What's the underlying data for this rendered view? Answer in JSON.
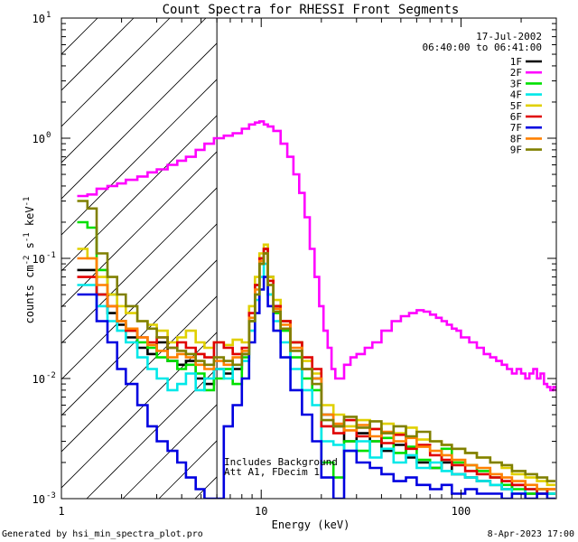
{
  "chart_data": {
    "type": "line",
    "title": "Count Spectra for RHESSI Front Segments",
    "xlabel": "Energy (keV)",
    "ylabel": {
      "base": "counts cm",
      "exp1": "-2",
      "mid": " s",
      "exp2": "-1",
      "tail": " keV",
      "exp3": "-1"
    },
    "xscale": "log",
    "yscale": "log",
    "xlim": [
      1,
      300
    ],
    "ylim": [
      0.001,
      10
    ],
    "xticks": [
      {
        "value": 1,
        "label": "1"
      },
      {
        "value": 10,
        "label": "10"
      },
      {
        "value": 100,
        "label": "100"
      }
    ],
    "yticks": [
      {
        "value": 0.001,
        "base": "10",
        "exp": "-3"
      },
      {
        "value": 0.01,
        "base": "10",
        "exp": "-2"
      },
      {
        "value": 0.1,
        "base": "10",
        "exp": "-1"
      },
      {
        "value": 1,
        "base": "10",
        "exp": "0"
      },
      {
        "value": 10,
        "base": "10",
        "exp": "1"
      }
    ],
    "shaded_region": {
      "x": [
        1,
        6
      ],
      "style": "hatched"
    },
    "date": "17-Jul-2002",
    "time_range": "06:40:00 to 06:41:00",
    "annotations": [
      "Includes Background",
      "Att A1, FDecim 1"
    ],
    "footer_left": "Generated by hsi_min_spectra_plot.pro",
    "footer_right": "8-Apr-2023 17:00",
    "series": [
      {
        "name": "1F",
        "color": "#000000",
        "x": [
          1.2,
          1.35,
          1.5,
          1.7,
          1.9,
          2.1,
          2.4,
          2.7,
          3.0,
          3.4,
          3.8,
          4.2,
          4.7,
          5.2,
          5.8,
          6.5,
          7.2,
          8.0,
          8.7,
          9.3,
          9.8,
          10.3,
          10.8,
          11.5,
          12.5,
          14,
          16,
          18,
          20,
          23,
          26,
          30,
          35,
          40,
          46,
          53,
          60,
          70,
          80,
          90,
          105,
          120,
          140,
          160,
          180,
          210,
          240,
          270
        ],
        "y": [
          0.08,
          0.08,
          0.05,
          0.035,
          0.028,
          0.022,
          0.018,
          0.016,
          0.02,
          0.014,
          0.013,
          0.014,
          0.01,
          0.009,
          0.012,
          0.011,
          0.012,
          0.016,
          0.03,
          0.06,
          0.1,
          0.12,
          0.07,
          0.04,
          0.03,
          0.02,
          0.012,
          0.01,
          0.005,
          0.004,
          0.003,
          0.0035,
          0.003,
          0.0025,
          0.0028,
          0.0022,
          0.002,
          0.0018,
          0.002,
          0.0016,
          0.0015,
          0.0014,
          0.0013,
          0.0012,
          0.0013,
          0.0011,
          0.0012,
          0.0011
        ]
      },
      {
        "name": "2F",
        "color": "#ff00ff",
        "x": [
          1.2,
          1.35,
          1.5,
          1.7,
          1.9,
          2.1,
          2.4,
          2.7,
          3.0,
          3.4,
          3.8,
          4.2,
          4.7,
          5.2,
          5.8,
          6.5,
          7.2,
          8.0,
          8.7,
          9.3,
          9.8,
          10.3,
          10.8,
          11.5,
          12.5,
          13.5,
          14.5,
          15.5,
          16.5,
          17.5,
          18.5,
          19.5,
          20.5,
          21.5,
          22.5,
          23.5,
          24.5,
          26,
          28,
          30,
          33,
          36,
          40,
          45,
          50,
          55,
          60,
          65,
          70,
          75,
          80,
          85,
          90,
          95,
          100,
          110,
          120,
          130,
          140,
          150,
          160,
          170,
          180,
          190,
          200,
          210,
          220,
          230,
          240,
          250,
          260,
          270,
          280,
          290,
          300
        ],
        "y": [
          0.33,
          0.34,
          0.38,
          0.4,
          0.42,
          0.45,
          0.48,
          0.52,
          0.55,
          0.6,
          0.65,
          0.7,
          0.8,
          0.9,
          1.0,
          1.05,
          1.1,
          1.2,
          1.3,
          1.35,
          1.38,
          1.3,
          1.25,
          1.15,
          0.9,
          0.7,
          0.5,
          0.35,
          0.22,
          0.12,
          0.07,
          0.04,
          0.025,
          0.018,
          0.012,
          0.01,
          0.01,
          0.013,
          0.015,
          0.016,
          0.018,
          0.02,
          0.025,
          0.03,
          0.033,
          0.035,
          0.037,
          0.036,
          0.034,
          0.032,
          0.03,
          0.028,
          0.026,
          0.025,
          0.022,
          0.02,
          0.018,
          0.016,
          0.015,
          0.014,
          0.013,
          0.012,
          0.011,
          0.012,
          0.011,
          0.01,
          0.011,
          0.012,
          0.01,
          0.011,
          0.009,
          0.0085,
          0.008,
          0.0085,
          0.008
        ]
      },
      {
        "name": "3F",
        "color": "#00e000",
        "x": [
          1.2,
          1.35,
          1.5,
          1.7,
          1.9,
          2.1,
          2.4,
          2.7,
          3.0,
          3.4,
          3.8,
          4.2,
          4.7,
          5.2,
          5.8,
          6.5,
          7.2,
          8.0,
          8.7,
          9.3,
          9.8,
          10.3,
          10.8,
          11.5,
          12.5,
          14,
          16,
          18,
          20,
          23,
          26,
          30,
          35,
          40,
          46,
          53,
          60,
          70,
          80,
          90,
          105,
          120,
          140,
          160,
          180,
          210,
          240,
          270
        ],
        "y": [
          0.2,
          0.18,
          0.08,
          0.05,
          0.03,
          0.025,
          0.02,
          0.018,
          0.015,
          0.014,
          0.012,
          0.013,
          0.011,
          0.008,
          0.01,
          0.012,
          0.009,
          0.015,
          0.03,
          0.05,
          0.09,
          0.11,
          0.05,
          0.035,
          0.025,
          0.015,
          0.01,
          0.008,
          0.002,
          0.0015,
          0.003,
          0.0025,
          0.003,
          0.0032,
          0.0024,
          0.0027,
          0.0021,
          0.0018,
          0.0026,
          0.002,
          0.0019,
          0.0017,
          0.0015,
          0.0013,
          0.0012,
          0.0011,
          0.0012,
          0.0011
        ]
      },
      {
        "name": "4F",
        "color": "#00e8e8",
        "x": [
          1.2,
          1.35,
          1.5,
          1.7,
          1.9,
          2.1,
          2.4,
          2.7,
          3.0,
          3.4,
          3.8,
          4.2,
          4.7,
          5.2,
          5.8,
          6.5,
          7.2,
          8.0,
          8.7,
          9.3,
          9.8,
          10.3,
          10.8,
          11.5,
          12.5,
          14,
          16,
          18,
          20,
          23,
          26,
          30,
          35,
          40,
          46,
          53,
          60,
          70,
          80,
          90,
          105,
          120,
          140,
          160,
          180,
          210,
          240,
          270
        ],
        "y": [
          0.06,
          0.06,
          0.04,
          0.03,
          0.025,
          0.02,
          0.015,
          0.012,
          0.01,
          0.008,
          0.009,
          0.011,
          0.008,
          0.01,
          0.012,
          0.01,
          0.013,
          0.014,
          0.025,
          0.045,
          0.07,
          0.09,
          0.05,
          0.03,
          0.02,
          0.012,
          0.008,
          0.006,
          0.003,
          0.0028,
          0.0025,
          0.003,
          0.0022,
          0.0026,
          0.002,
          0.0023,
          0.0018,
          0.002,
          0.0017,
          0.0016,
          0.0015,
          0.0014,
          0.0013,
          0.0012,
          0.0011,
          0.0012,
          0.0011,
          0.0011
        ]
      },
      {
        "name": "5F",
        "color": "#e0d000",
        "x": [
          1.2,
          1.35,
          1.5,
          1.7,
          1.9,
          2.1,
          2.4,
          2.7,
          3.0,
          3.4,
          3.8,
          4.2,
          4.7,
          5.2,
          5.8,
          6.5,
          7.2,
          8.0,
          8.7,
          9.3,
          9.8,
          10.3,
          10.8,
          11.5,
          12.5,
          14,
          16,
          18,
          20,
          23,
          26,
          30,
          35,
          40,
          46,
          53,
          60,
          70,
          80,
          90,
          105,
          120,
          140,
          160,
          180,
          210,
          240,
          270
        ],
        "y": [
          0.12,
          0.1,
          0.07,
          0.05,
          0.04,
          0.035,
          0.03,
          0.028,
          0.025,
          0.02,
          0.022,
          0.025,
          0.02,
          0.018,
          0.02,
          0.019,
          0.021,
          0.02,
          0.04,
          0.07,
          0.11,
          0.13,
          0.07,
          0.045,
          0.03,
          0.02,
          0.014,
          0.011,
          0.006,
          0.005,
          0.004,
          0.0045,
          0.0038,
          0.0042,
          0.0035,
          0.0039,
          0.0031,
          0.003,
          0.0028,
          0.0026,
          0.0024,
          0.0022,
          0.002,
          0.0018,
          0.0016,
          0.0015,
          0.0014,
          0.0013
        ]
      },
      {
        "name": "6F",
        "color": "#e00000",
        "x": [
          1.2,
          1.35,
          1.5,
          1.7,
          1.9,
          2.1,
          2.4,
          2.7,
          3.0,
          3.4,
          3.8,
          4.2,
          4.7,
          5.2,
          5.8,
          6.5,
          7.2,
          8.0,
          8.7,
          9.3,
          9.8,
          10.3,
          10.8,
          11.5,
          12.5,
          14,
          16,
          18,
          20,
          23,
          26,
          30,
          35,
          40,
          46,
          53,
          60,
          70,
          80,
          90,
          105,
          120,
          140,
          160,
          180,
          210,
          240,
          270
        ],
        "y": [
          0.07,
          0.07,
          0.05,
          0.04,
          0.03,
          0.025,
          0.022,
          0.02,
          0.022,
          0.018,
          0.02,
          0.018,
          0.016,
          0.015,
          0.02,
          0.018,
          0.016,
          0.018,
          0.035,
          0.06,
          0.1,
          0.12,
          0.065,
          0.04,
          0.03,
          0.02,
          0.015,
          0.012,
          0.004,
          0.0035,
          0.0045,
          0.0033,
          0.0038,
          0.0029,
          0.0034,
          0.0026,
          0.0028,
          0.0023,
          0.0021,
          0.0019,
          0.0017,
          0.0016,
          0.0015,
          0.0014,
          0.0013,
          0.0012,
          0.0011,
          0.0012
        ]
      },
      {
        "name": "7F",
        "color": "#0000e0",
        "x": [
          1.2,
          1.35,
          1.5,
          1.7,
          1.9,
          2.1,
          2.4,
          2.7,
          3.0,
          3.4,
          3.8,
          4.2,
          4.7,
          5.2,
          5.8,
          6.5,
          7.2,
          8.0,
          8.7,
          9.3,
          9.8,
          10.3,
          10.8,
          11.5,
          12.5,
          14,
          16,
          18,
          20,
          23,
          26,
          30,
          35,
          40,
          46,
          53,
          60,
          70,
          80,
          90,
          105,
          120,
          140,
          160,
          180,
          210,
          240,
          270
        ],
        "y": [
          0.05,
          0.05,
          0.03,
          0.02,
          0.012,
          0.009,
          0.006,
          0.004,
          0.003,
          0.0025,
          0.002,
          0.0015,
          0.0012,
          0.001,
          0.001,
          0.004,
          0.006,
          0.01,
          0.02,
          0.035,
          0.055,
          0.07,
          0.04,
          0.025,
          0.015,
          0.008,
          0.005,
          0.003,
          0.0015,
          0.001,
          0.0025,
          0.002,
          0.0018,
          0.0016,
          0.0014,
          0.0015,
          0.0013,
          0.0012,
          0.0013,
          0.0011,
          0.0012,
          0.0011,
          0.0011,
          0.001,
          0.0011,
          0.001,
          0.0011,
          0.001
        ]
      },
      {
        "name": "8F",
        "color": "#ff8000",
        "x": [
          1.2,
          1.35,
          1.5,
          1.7,
          1.9,
          2.1,
          2.4,
          2.7,
          3.0,
          3.4,
          3.8,
          4.2,
          4.7,
          5.2,
          5.8,
          6.5,
          7.2,
          8.0,
          8.7,
          9.3,
          9.8,
          10.3,
          10.8,
          11.5,
          12.5,
          14,
          16,
          18,
          20,
          23,
          26,
          30,
          35,
          40,
          46,
          53,
          60,
          70,
          80,
          90,
          105,
          120,
          140,
          160,
          180,
          210,
          240,
          270
        ],
        "y": [
          0.1,
          0.1,
          0.06,
          0.04,
          0.03,
          0.026,
          0.022,
          0.019,
          0.017,
          0.015,
          0.016,
          0.015,
          0.013,
          0.012,
          0.014,
          0.013,
          0.015,
          0.017,
          0.032,
          0.055,
          0.095,
          0.11,
          0.06,
          0.038,
          0.028,
          0.018,
          0.012,
          0.01,
          0.005,
          0.0042,
          0.0037,
          0.0041,
          0.0033,
          0.0036,
          0.003,
          0.0032,
          0.0027,
          0.0025,
          0.0023,
          0.0021,
          0.0019,
          0.0018,
          0.0016,
          0.0015,
          0.0014,
          0.0013,
          0.0012,
          0.0012
        ]
      },
      {
        "name": "9F",
        "color": "#808000",
        "x": [
          1.2,
          1.35,
          1.5,
          1.7,
          1.9,
          2.1,
          2.4,
          2.7,
          3.0,
          3.4,
          3.8,
          4.2,
          4.7,
          5.2,
          5.8,
          6.5,
          7.2,
          8.0,
          8.7,
          9.3,
          9.8,
          10.3,
          10.8,
          11.5,
          12.5,
          14,
          16,
          18,
          20,
          23,
          26,
          30,
          35,
          40,
          46,
          53,
          60,
          70,
          80,
          90,
          105,
          120,
          140,
          160,
          180,
          210,
          240,
          270
        ],
        "y": [
          0.3,
          0.26,
          0.11,
          0.07,
          0.05,
          0.04,
          0.03,
          0.026,
          0.022,
          0.018,
          0.017,
          0.016,
          0.014,
          0.013,
          0.015,
          0.014,
          0.013,
          0.016,
          0.03,
          0.05,
          0.09,
          0.11,
          0.06,
          0.036,
          0.026,
          0.017,
          0.012,
          0.009,
          0.0045,
          0.004,
          0.0048,
          0.0039,
          0.0044,
          0.0035,
          0.004,
          0.0033,
          0.0036,
          0.003,
          0.0028,
          0.0026,
          0.0024,
          0.0022,
          0.002,
          0.0019,
          0.0017,
          0.0016,
          0.0015,
          0.0014
        ]
      }
    ]
  }
}
